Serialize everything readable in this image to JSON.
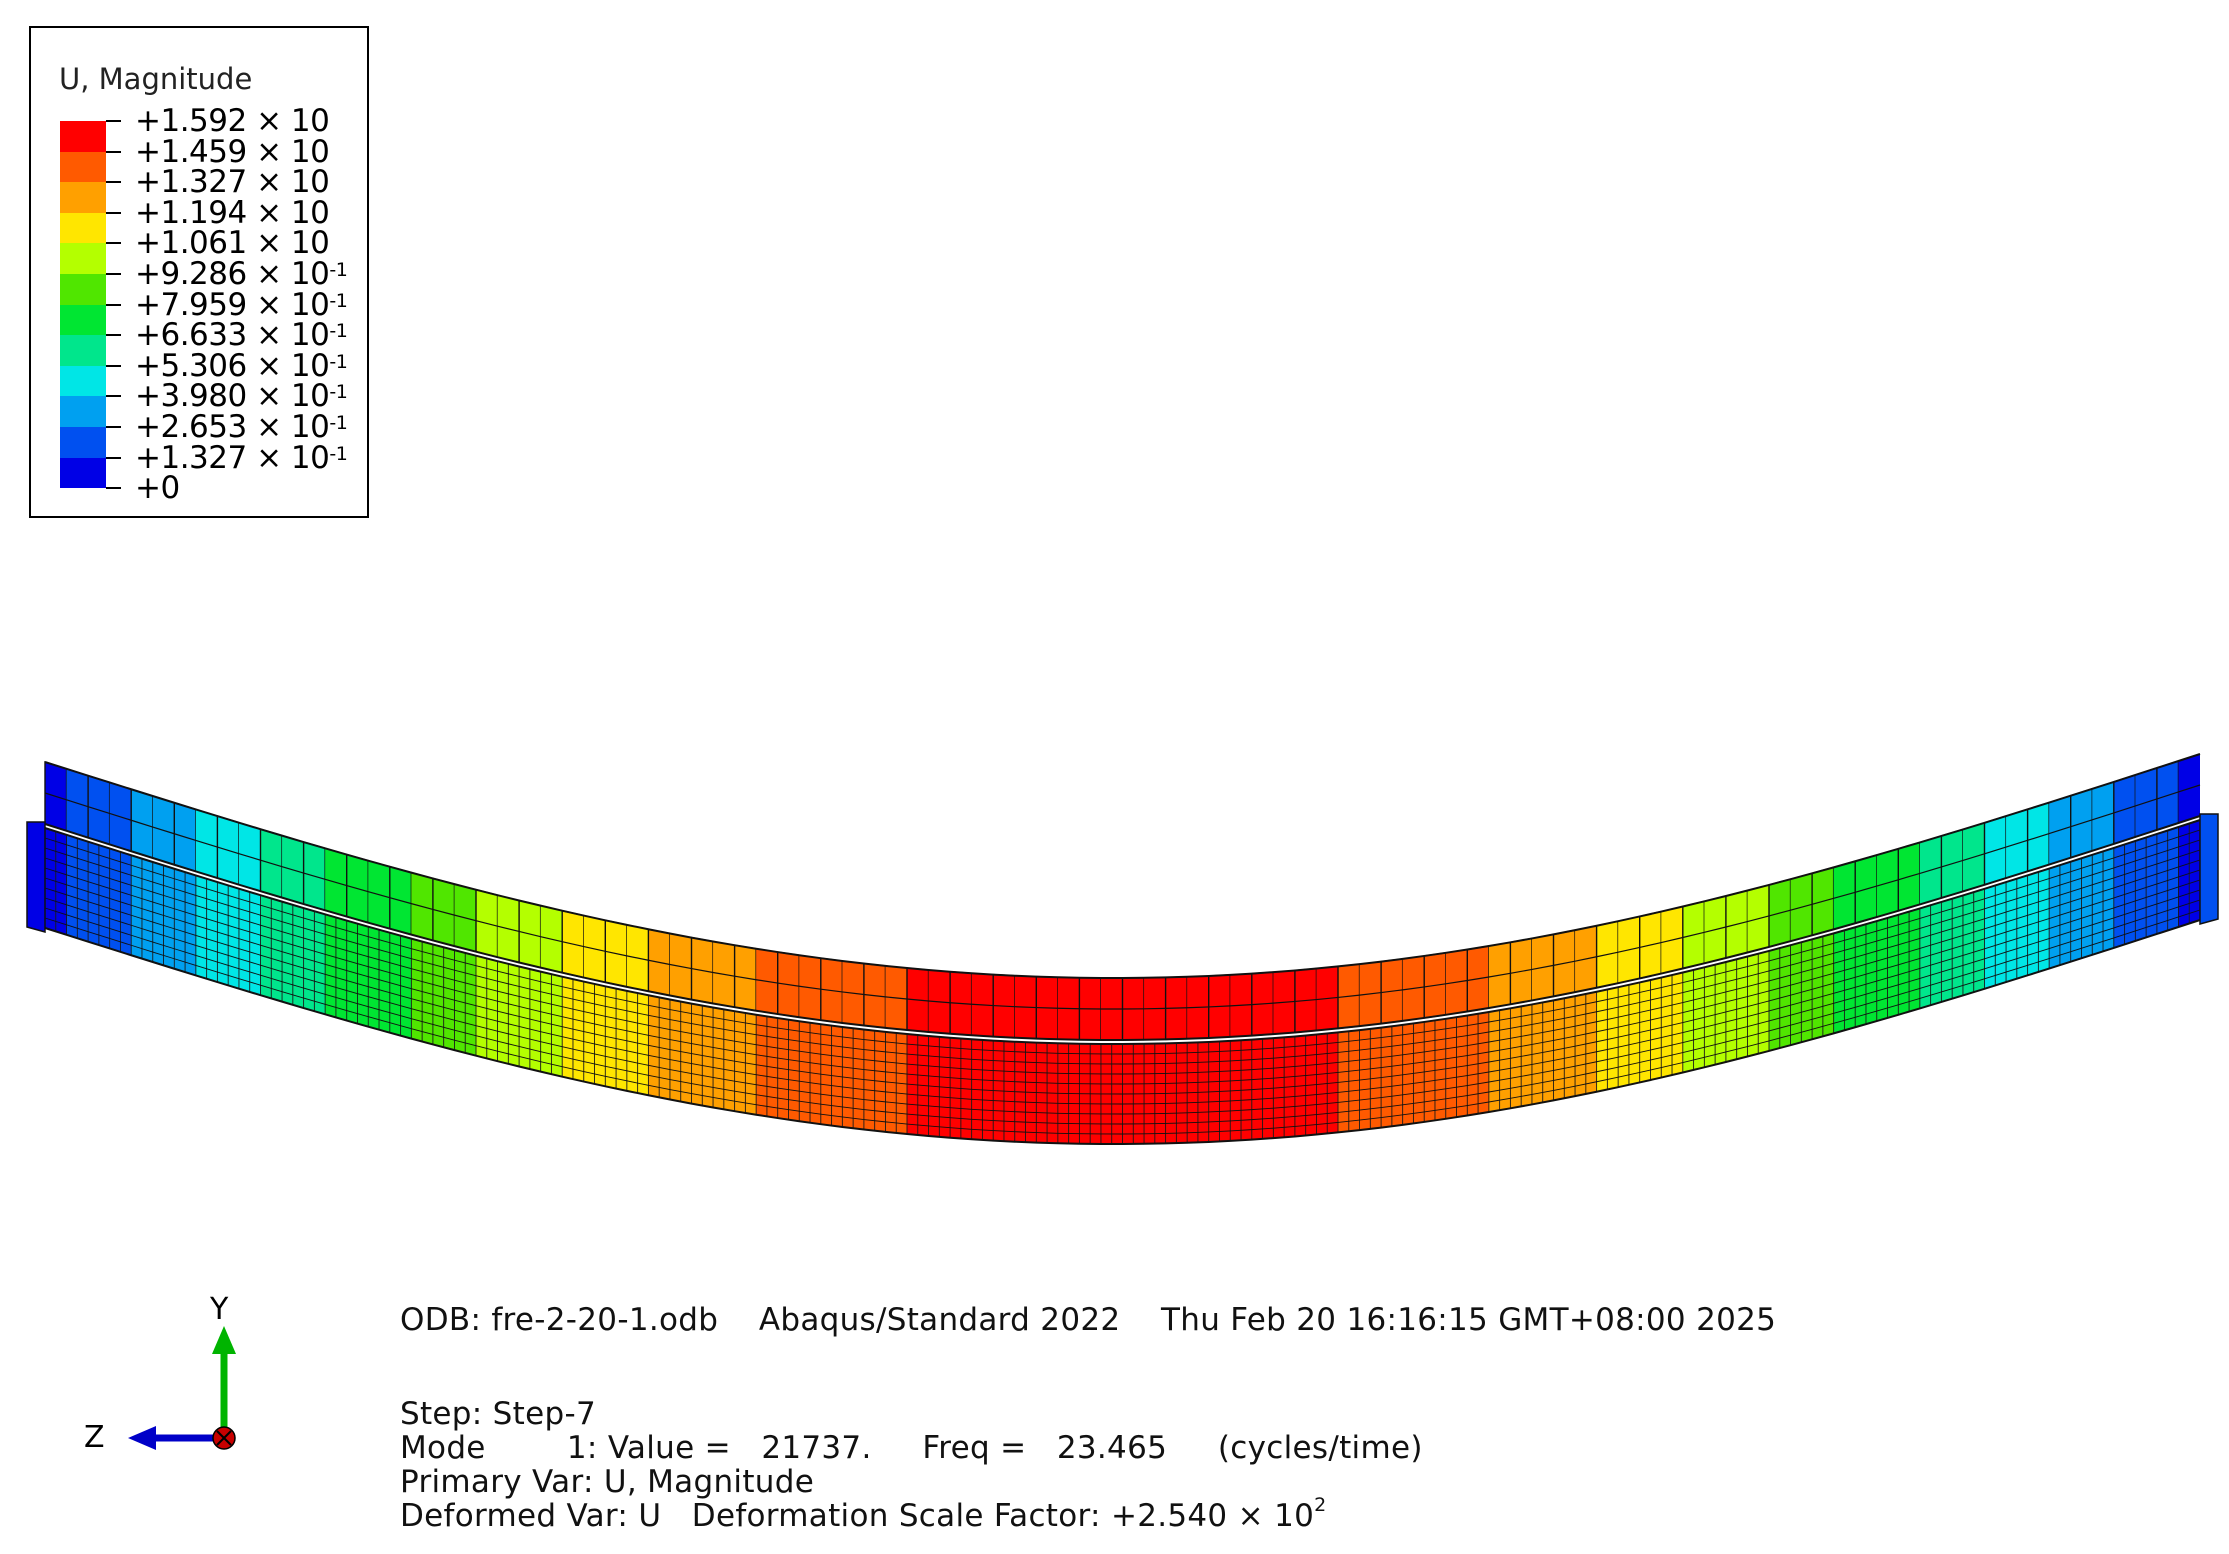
{
  "legend": {
    "title": "U, Magnitude",
    "colors": [
      "#ff0000",
      "#ff5a00",
      "#ffa000",
      "#ffe600",
      "#b4ff00",
      "#50e600",
      "#00e632",
      "#00e68c",
      "#00e6e6",
      "#00a0f0",
      "#0050f0",
      "#0000e6"
    ],
    "labels": [
      {
        "mantissa": "+1.592",
        "exponent": "",
        "base": "10"
      },
      {
        "mantissa": "+1.459",
        "exponent": "",
        "base": "10"
      },
      {
        "mantissa": "+1.327",
        "exponent": "",
        "base": "10"
      },
      {
        "mantissa": "+1.194",
        "exponent": "",
        "base": "10"
      },
      {
        "mantissa": "+1.061",
        "exponent": "",
        "base": "10"
      },
      {
        "mantissa": "+9.286",
        "exponent": "-1",
        "base": "10"
      },
      {
        "mantissa": "+7.959",
        "exponent": "-1",
        "base": "10"
      },
      {
        "mantissa": "+6.633",
        "exponent": "-1",
        "base": "10"
      },
      {
        "mantissa": "+5.306",
        "exponent": "-1",
        "base": "10"
      },
      {
        "mantissa": "+3.980",
        "exponent": "-1",
        "base": "10"
      },
      {
        "mantissa": "+2.653",
        "exponent": "-1",
        "base": "10"
      },
      {
        "mantissa": "+1.327",
        "exponent": "-1",
        "base": "10"
      },
      {
        "mantissa": "+0",
        "exponent": "",
        "base": ""
      }
    ]
  },
  "triad": {
    "y_label": "Y",
    "z_label": "Z",
    "y_color": "#00b400",
    "z_color": "#0000c8",
    "x_color": "#c80000"
  },
  "info": {
    "odb_line": "ODB: fre-2-20-1.odb    Abaqus/Standard 2022    Thu Feb 20 16:16:15 GMT+08:00 2025",
    "step_line": "Step: Step-7",
    "mode_line": "Mode        1: Value =   21737.     Freq =   23.465     (cycles/time)",
    "primary_line": "Primary Var: U, Magnitude",
    "deformed_prefix": "Deformed Var: U   Deformation Scale Factor: ",
    "scale_mantissa": "+2.540",
    "scale_base": "10",
    "scale_exponent": "2"
  }
}
